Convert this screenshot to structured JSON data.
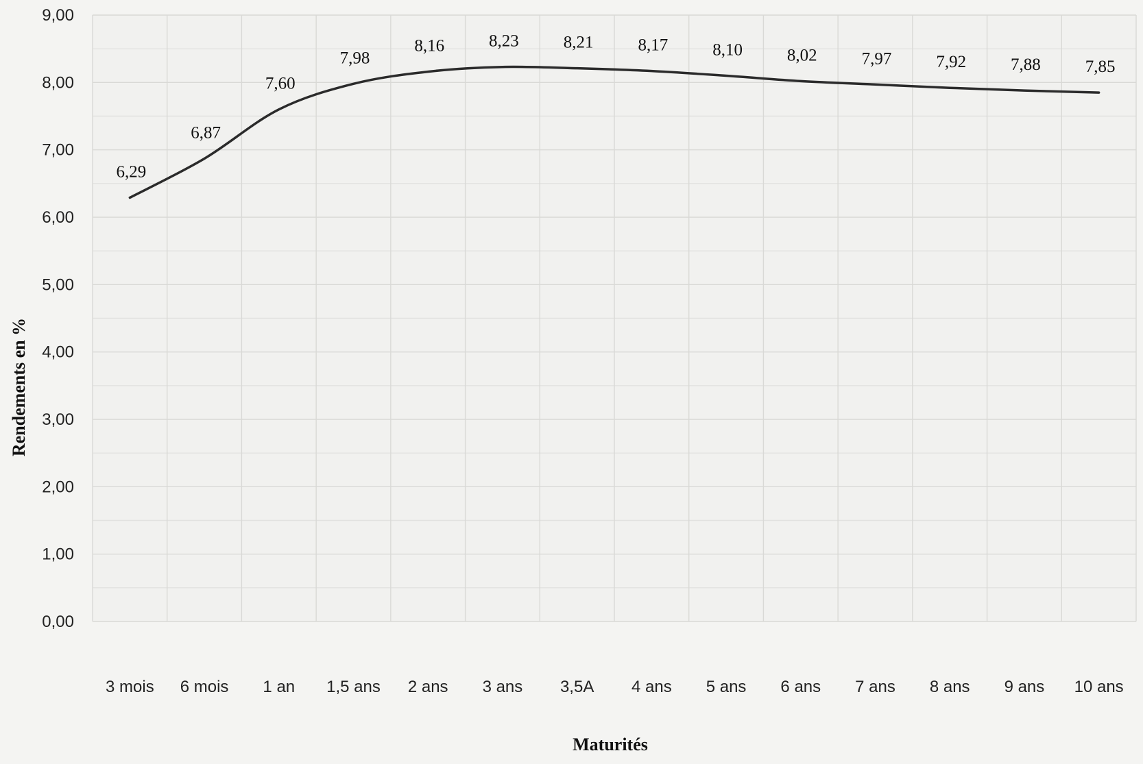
{
  "chart_data": {
    "type": "line",
    "title": "",
    "xlabel": "Maturités",
    "ylabel": "Rendements en %",
    "ylim": [
      0,
      9
    ],
    "yticks": [
      "0,00",
      "1,00",
      "2,00",
      "3,00",
      "4,00",
      "5,00",
      "6,00",
      "7,00",
      "8,00",
      "9,00"
    ],
    "categories": [
      "3 mois",
      "6 mois",
      "1 an",
      "1,5 ans",
      "2 ans",
      "3 ans",
      "3,5A",
      "4 ans",
      "5 ans",
      "6 ans",
      "7 ans",
      "8 ans",
      "9 ans",
      "10 ans"
    ],
    "series": [
      {
        "values": [
          6.29,
          6.87,
          7.6,
          7.98,
          8.16,
          8.23,
          8.21,
          8.17,
          8.1,
          8.02,
          7.97,
          7.92,
          7.88,
          7.85
        ],
        "data_labels": [
          "6,29",
          "6,87",
          "7,60",
          "7,98",
          "8,16",
          "8,23",
          "8,21",
          "8,17",
          "8,10",
          "8,02",
          "7,97",
          "7,92",
          "7,88",
          "7,85"
        ]
      }
    ],
    "grid": true,
    "legend": "none",
    "smooth": true
  },
  "colors": {
    "background": "#f4f4f2",
    "plot_area": "#f1f1ef",
    "line": "#2b2b2b",
    "grid": "#d9d9d6"
  }
}
